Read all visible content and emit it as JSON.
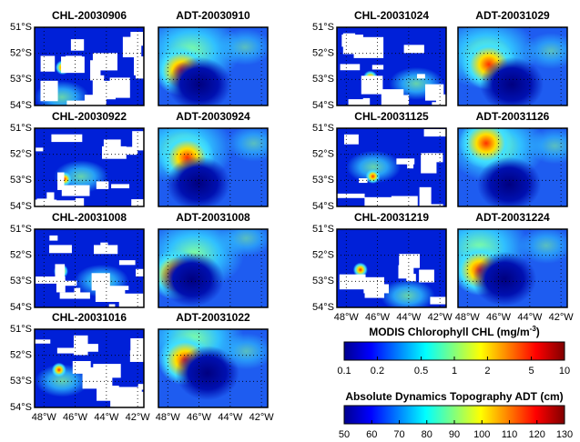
{
  "groups": [
    {
      "rows": [
        [
          "CHL-20030906",
          "ADT-20030910"
        ],
        [
          "CHL-20030922",
          "ADT-20030924"
        ],
        [
          "CHL-20031008",
          "ADT-20031008"
        ],
        [
          "CHL-20031016",
          "ADT-20031022"
        ]
      ]
    },
    {
      "rows": [
        [
          "CHL-20031024",
          "ADT-20031029"
        ],
        [
          "CHL-20031125",
          "ADT-20031126"
        ],
        [
          "CHL-20031219",
          "ADT-20031224"
        ]
      ]
    }
  ],
  "lat_lim": [
    51,
    54
  ],
  "lat_ticks": [
    {
      "value": 51,
      "label": "51°S"
    },
    {
      "value": 52,
      "label": "52°S"
    },
    {
      "value": 53,
      "label": "53°S"
    },
    {
      "value": 54,
      "label": "54°S"
    }
  ],
  "lon_lim": [
    -48.6,
    -41.6
  ],
  "lon_ticks": [
    {
      "value": -48,
      "label": "48°W"
    },
    {
      "value": -46,
      "label": "46°W"
    },
    {
      "value": -44,
      "label": "44°W"
    },
    {
      "value": -42,
      "label": "42°W"
    }
  ],
  "chl_colorbar": {
    "title": "MODIS Chlorophyll CHL (mg/m",
    "title_sup": "-3",
    "title_end": ")",
    "lim": [
      0.1,
      10
    ],
    "ticks": [
      0.1,
      0.2,
      0.5,
      1,
      2,
      5,
      10
    ],
    "log": true
  },
  "adt_colorbar": {
    "title": "Absolute Dynamics Topography ADT (cm)",
    "lim": [
      50,
      130
    ],
    "ticks": [
      50,
      60,
      70,
      80,
      90,
      100,
      110,
      120,
      130
    ],
    "log": false
  }
}
